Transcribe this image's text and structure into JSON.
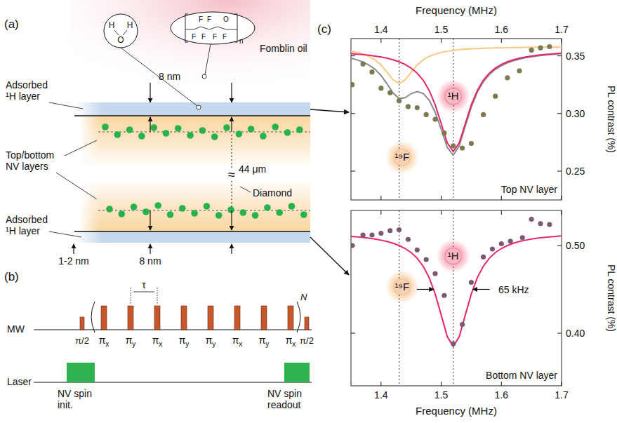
{
  "panel_a": {
    "letter": "(a)",
    "water": [
      "H",
      "H",
      "O"
    ],
    "fomblin_atoms_top": [
      "F",
      "F",
      "O"
    ],
    "fomblin_atoms_bottom": [
      "F",
      "F",
      "F",
      "F"
    ],
    "fomblin_repeat": "n",
    "fomblin_label": "Fomblin oil",
    "adsorbed_top_label": [
      "Adsorbed",
      "¹H layer"
    ],
    "adsorbed_bottom_label": [
      "Adsorbed",
      "¹H layer"
    ],
    "nv_layers_label": [
      "Top/bottom",
      "NV layers"
    ],
    "diamond_label": "Diamond",
    "top_depth": "8 nm",
    "bottom_depth": "8 nm",
    "bottom_adsorbed_thickness": "1-2 nm",
    "diamond_thickness": "44 μm",
    "break_symbol": "≈"
  },
  "panel_b": {
    "letter": "(b)",
    "mw_label": "MW",
    "laser_label": "Laser",
    "tau": "τ",
    "repeat": "N",
    "first_pulse": "π/2",
    "pulses": [
      {
        "symbol": "π",
        "sub": "x"
      },
      {
        "symbol": "π",
        "sub": "y"
      },
      {
        "symbol": "π",
        "sub": "x"
      },
      {
        "symbol": "π",
        "sub": "y"
      },
      {
        "symbol": "π",
        "sub": "y"
      },
      {
        "symbol": "π",
        "sub": "x"
      },
      {
        "symbol": "π",
        "sub": "y"
      },
      {
        "symbol": "π",
        "sub": "x"
      }
    ],
    "last_pulse": "π/2",
    "laser_pulses": [
      [
        "NV spin",
        "init."
      ],
      [
        "NV spin",
        "readout"
      ]
    ]
  },
  "panel_c": {
    "letter": "(c)"
  },
  "chart_data": [
    {
      "type": "scatter",
      "title": "Top NV layer",
      "x_label": "Frequency (MHz)",
      "y_label": "PL contrast (%)",
      "xlim": [
        1.35,
        1.7
      ],
      "xticks": [
        1.4,
        1.5,
        1.6,
        1.7
      ],
      "ylim": [
        0.225,
        0.365
      ],
      "yticks": [
        0.25,
        {
          "value": 0.3,
          "label": "0.30"
        },
        0.35
      ],
      "reference_lines": [
        1.43,
        1.52
      ],
      "series": [
        {
          "type": "line",
          "color": "#fbc884",
          "line_style": "solid",
          "x": [
            1.35,
            1.36,
            1.37,
            1.38,
            1.39,
            1.4,
            1.41,
            1.42,
            1.43,
            1.44,
            1.45,
            1.46,
            1.47,
            1.48,
            1.49,
            1.5,
            1.51,
            1.52,
            1.53,
            1.54,
            1.55,
            1.56,
            1.57,
            1.58,
            1.59,
            1.6,
            1.61,
            1.62,
            1.63,
            1.64,
            1.65,
            1.66,
            1.67,
            1.68,
            1.69,
            1.7
          ],
          "values": [
            0.3541,
            0.353,
            0.3516,
            0.3495,
            0.3465,
            0.342,
            0.3358,
            0.3292,
            0.326,
            0.3292,
            0.3358,
            0.342,
            0.3465,
            0.3495,
            0.3516,
            0.353,
            0.3541,
            0.3548,
            0.3554,
            0.3558,
            0.3561,
            0.3564,
            0.3566,
            0.3568,
            0.3569,
            0.357,
            0.3571,
            0.3572,
            0.3573,
            0.3574,
            0.3574,
            0.3575,
            0.3575,
            0.3576,
            0.3576,
            0.3576
          ]
        },
        {
          "type": "line",
          "color": "#8a8a8a",
          "line_style": "solid",
          "x": [
            1.35,
            1.36,
            1.37,
            1.38,
            1.39,
            1.4,
            1.41,
            1.42,
            1.43,
            1.44,
            1.45,
            1.46,
            1.47,
            1.48,
            1.49,
            1.5,
            1.51,
            1.52,
            1.53,
            1.54,
            1.55,
            1.56,
            1.57,
            1.58,
            1.59,
            1.6,
            1.61,
            1.62,
            1.63,
            1.64,
            1.65,
            1.66,
            1.67,
            1.68,
            1.69,
            1.7
          ],
          "values": [
            0.348,
            0.3465,
            0.3447,
            0.342,
            0.3383,
            0.333,
            0.3257,
            0.3178,
            0.3129,
            0.3137,
            0.3172,
            0.319,
            0.3174,
            0.3115,
            0.3011,
            0.2862,
            0.2707,
            0.2638,
            0.272,
            0.289,
            0.3056,
            0.3184,
            0.3275,
            0.3338,
            0.3383,
            0.3415,
            0.344,
            0.3458,
            0.3472,
            0.3484,
            0.3492,
            0.35,
            0.3506,
            0.3511,
            0.3515,
            0.352
          ]
        },
        {
          "type": "line",
          "color": "#e5266c",
          "line_style": "solid",
          "x": [
            1.35,
            1.36,
            1.37,
            1.38,
            1.39,
            1.4,
            1.41,
            1.42,
            1.43,
            1.44,
            1.45,
            1.46,
            1.47,
            1.48,
            1.49,
            1.5,
            1.51,
            1.52,
            1.53,
            1.54,
            1.55,
            1.56,
            1.57,
            1.58,
            1.59,
            1.6,
            1.61,
            1.62,
            1.63,
            1.64,
            1.65,
            1.66,
            1.67,
            1.68,
            1.69,
            1.7
          ],
          "values": [
            0.3519,
            0.3515,
            0.3511,
            0.3505,
            0.3498,
            0.349,
            0.3479,
            0.3466,
            0.3449,
            0.3425,
            0.3394,
            0.335,
            0.3289,
            0.32,
            0.3075,
            0.2912,
            0.2746,
            0.267,
            0.2746,
            0.2912,
            0.3075,
            0.32,
            0.3289,
            0.335,
            0.3394,
            0.3425,
            0.3449,
            0.3466,
            0.3479,
            0.349,
            0.3498,
            0.3505,
            0.3511,
            0.3515,
            0.3519,
            0.3524
          ]
        },
        {
          "type": "scatter",
          "color": "#7d7b4e",
          "marker": "circle",
          "x": [
            1.352,
            1.37,
            1.385,
            1.4,
            1.415,
            1.43,
            1.445,
            1.46,
            1.475,
            1.49,
            1.505,
            1.52,
            1.535,
            1.55,
            1.57,
            1.59,
            1.61,
            1.63,
            1.65,
            1.665,
            1.68
          ],
          "values": [
            0.325,
            0.343,
            0.336,
            0.322,
            0.318,
            0.311,
            0.306,
            0.305,
            0.299,
            0.295,
            0.283,
            0.272,
            0.27,
            0.274,
            0.299,
            0.315,
            0.331,
            0.337,
            0.355,
            0.357,
            0.358
          ]
        }
      ],
      "annotations": [
        {
          "text": "¹H",
          "x": 1.52,
          "y": 0.315,
          "color": "#f25c7a"
        },
        {
          "text": "¹⁹F",
          "x": 1.435,
          "y": 0.262,
          "color": "#f5a95a"
        }
      ]
    },
    {
      "type": "scatter",
      "title": "Bottom NV layer",
      "x_label": "Frequency (MHz)",
      "y_label": "PL contrast (%)",
      "xlim": [
        1.35,
        1.7
      ],
      "xticks": [
        1.4,
        1.5,
        1.6,
        1.7
      ],
      "ylim": [
        0.34,
        0.54
      ],
      "yticks": [
        {
          "value": 0.4,
          "label": "0.40"
        },
        {
          "value": 0.5,
          "label": "0.50"
        }
      ],
      "reference_lines": [
        1.43,
        1.52
      ],
      "series": [
        {
          "type": "line",
          "color": "#e5266c",
          "line_style": "solid",
          "x": [
            1.35,
            1.36,
            1.37,
            1.38,
            1.39,
            1.4,
            1.41,
            1.42,
            1.43,
            1.44,
            1.45,
            1.46,
            1.47,
            1.48,
            1.49,
            1.5,
            1.51,
            1.52,
            1.53,
            1.54,
            1.55,
            1.56,
            1.57,
            1.58,
            1.59,
            1.6,
            1.61,
            1.62,
            1.63,
            1.64,
            1.65,
            1.66,
            1.67,
            1.68,
            1.69,
            1.7
          ],
          "values": [
            0.5104,
            0.5099,
            0.5092,
            0.5084,
            0.5074,
            0.5061,
            0.5046,
            0.5026,
            0.5,
            0.4966,
            0.492,
            0.4855,
            0.4764,
            0.4633,
            0.4448,
            0.4207,
            0.3962,
            0.385,
            0.3962,
            0.4207,
            0.4448,
            0.4633,
            0.4764,
            0.4855,
            0.492,
            0.4966,
            0.5,
            0.5026,
            0.5046,
            0.5061,
            0.5074,
            0.5084,
            0.5092,
            0.5099,
            0.5104,
            0.5111
          ]
        },
        {
          "type": "scatter",
          "color": "#7a5876",
          "marker": "circle",
          "x": [
            1.352,
            1.37,
            1.385,
            1.4,
            1.415,
            1.43,
            1.445,
            1.46,
            1.475,
            1.49,
            1.505,
            1.52,
            1.535,
            1.55,
            1.57,
            1.585,
            1.6,
            1.615,
            1.635,
            1.65,
            1.665,
            1.68
          ],
          "values": [
            0.5,
            0.512,
            0.512,
            0.514,
            0.517,
            0.518,
            0.507,
            0.495,
            0.484,
            0.468,
            0.443,
            0.388,
            0.41,
            0.458,
            0.487,
            0.496,
            0.502,
            0.505,
            0.509,
            0.53,
            0.525,
            0.524
          ]
        }
      ],
      "annotations": [
        {
          "text": "¹H",
          "x": 1.52,
          "y": 0.488,
          "color": "#f25c7a"
        },
        {
          "text": "¹⁹F",
          "x": 1.435,
          "y": 0.453,
          "color": "#f5a95a"
        },
        {
          "text": "65 kHz",
          "x": 1.595,
          "y": 0.45
        }
      ],
      "width_marker": {
        "x": [
          1.4875,
          1.5525
        ],
        "y": 0.45
      }
    }
  ]
}
